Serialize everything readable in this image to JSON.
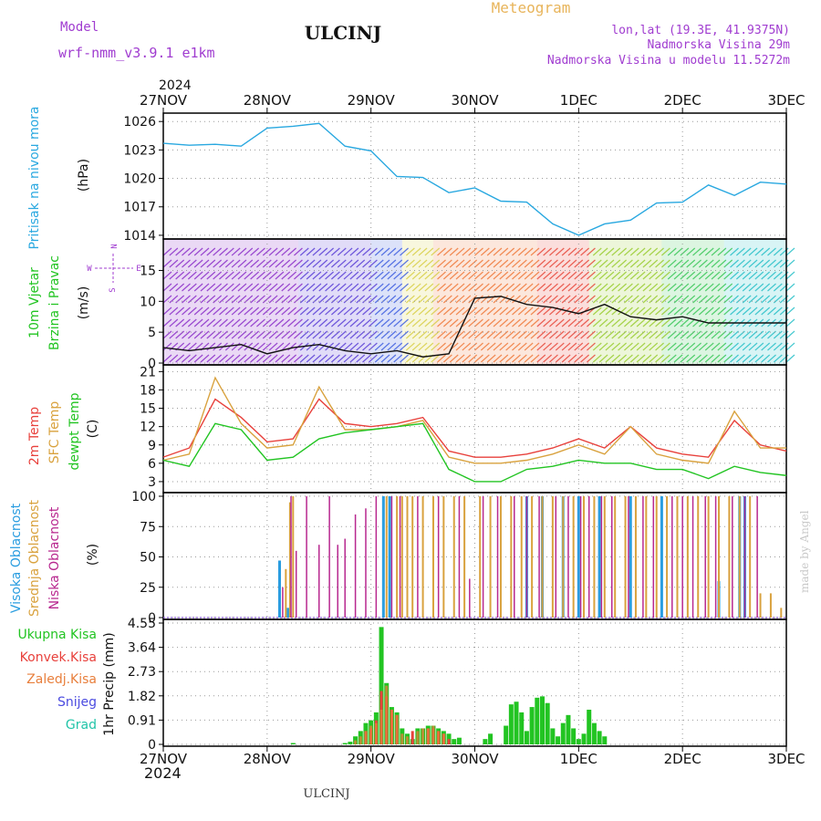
{
  "header": {
    "model_label": "Model",
    "model_name": "wrf-nmm_v3.9.1 e1km",
    "station": "ULCINJ",
    "app_title": "Meteogram",
    "lonlat": "lon,lat (19.3E, 41.9375N)",
    "elevation": "Nadmorska Visina 29m",
    "model_elevation": "Nadmorska Visina u modelu 11.5272m",
    "watermark": "made by Angel",
    "footer_station": "ULCINJ"
  },
  "colors": {
    "pressure": "#29a8e0",
    "t2m": "#e8413c",
    "tsfc": "#d9a23e",
    "dewpoint": "#22c422",
    "cloud_high": "#2a9de0",
    "cloud_mid": "#d9a23e",
    "cloud_low": "#b8288f",
    "precip_total": "#22c422",
    "precip_conv": "#e8413c",
    "precip_strat": "#e87f3c",
    "snow": "#4b4be0",
    "graupel": "#22c4a8",
    "wind_label": "#22c422",
    "purple_text": "#a03cd0"
  },
  "time_axis": {
    "year": "2024",
    "labels": [
      "27NOV",
      "28NOV",
      "29NOV",
      "30NOV",
      "1DEC",
      "2DEC",
      "3DEC"
    ]
  },
  "chart_data": [
    {
      "type": "line",
      "title": "Pritisak na nivou mora",
      "ylabel": "(hPa)",
      "ylim": [
        1013.8,
        1026.5
      ],
      "yticks": [
        "1026",
        "1023",
        "1020",
        "1017",
        "1014"
      ],
      "grid": true,
      "x": [
        0,
        0.25,
        0.5,
        0.75,
        1.0,
        1.25,
        1.5,
        1.75,
        2.0,
        2.25,
        2.5,
        2.75,
        3.0,
        3.25,
        3.5,
        3.75,
        4.0,
        4.25,
        4.5,
        4.75,
        5.0,
        5.25,
        5.5,
        5.75,
        6.0
      ],
      "series": [
        {
          "name": "Pritisak na nivou mora",
          "values": [
            1023.7,
            1023.5,
            1023.6,
            1023.4,
            1025.3,
            1025.5,
            1025.8,
            1023.4,
            1022.9,
            1020.2,
            1020.1,
            1018.5,
            1019.0,
            1017.6,
            1017.5,
            1015.2,
            1014.0,
            1015.2,
            1015.6,
            1017.4,
            1017.5,
            1019.3,
            1018.2,
            1019.6,
            1019.4
          ]
        }
      ]
    },
    {
      "type": "line",
      "title": "10m Vjetar Brzina i Pravac",
      "ylabel": "(m/s)",
      "ylim": [
        0,
        19.5
      ],
      "yticks": [
        "15",
        "10",
        "5",
        "0"
      ],
      "compass": [
        "N",
        "E",
        "S",
        "W"
      ],
      "x": [
        0,
        0.25,
        0.5,
        0.75,
        1.0,
        1.25,
        1.5,
        1.75,
        2.0,
        2.25,
        2.5,
        2.75,
        3.0,
        3.25,
        3.5,
        3.75,
        4.0,
        4.25,
        4.5,
        4.75,
        5.0,
        5.25,
        5.5,
        5.75,
        6.0
      ],
      "series": [
        {
          "name": "10m Vjetar Brzina i Pravac",
          "values": [
            2.5,
            2.0,
            2.5,
            3.0,
            1.5,
            2.5,
            3.0,
            2.0,
            1.5,
            2.0,
            1.0,
            1.5,
            10.5,
            10.8,
            9.5,
            9.0,
            8.0,
            9.5,
            7.5,
            7.0,
            7.5,
            6.5,
            6.5,
            6.5,
            6.5
          ]
        }
      ]
    },
    {
      "type": "line",
      "ylabel": "(C)",
      "ylim": [
        1.5,
        21.5
      ],
      "yticks": [
        "21",
        "18",
        "15",
        "12",
        "9",
        "6",
        "3"
      ],
      "grid": true,
      "x": [
        0,
        0.25,
        0.5,
        0.75,
        1.0,
        1.25,
        1.5,
        1.75,
        2.0,
        2.25,
        2.5,
        2.75,
        3.0,
        3.25,
        3.5,
        3.75,
        4.0,
        4.25,
        4.5,
        4.75,
        5.0,
        5.25,
        5.5,
        5.75,
        6.0
      ],
      "series": [
        {
          "name": "2m Temp",
          "values": [
            7.0,
            8.5,
            16.5,
            13.5,
            9.5,
            10.0,
            16.5,
            12.5,
            12.0,
            12.5,
            13.5,
            8.0,
            7.0,
            7.0,
            7.5,
            8.5,
            10.0,
            8.5,
            12.0,
            8.5,
            7.5,
            7.0,
            13.0,
            9.0,
            8.0
          ]
        },
        {
          "name": "SFC Temp",
          "values": [
            6.5,
            7.5,
            20.0,
            12.5,
            8.5,
            9.0,
            18.5,
            11.5,
            11.5,
            12.0,
            13.0,
            7.0,
            6.0,
            6.0,
            6.5,
            7.5,
            9.0,
            7.5,
            12.0,
            7.5,
            6.5,
            6.0,
            14.5,
            8.5,
            8.5
          ]
        },
        {
          "name": "dewpt Temp",
          "values": [
            6.5,
            5.5,
            12.5,
            11.5,
            6.5,
            7.0,
            10.0,
            11.0,
            11.5,
            12.0,
            12.5,
            5.0,
            3.0,
            3.0,
            5.0,
            5.5,
            6.5,
            6.0,
            6.0,
            5.0,
            5.0,
            3.5,
            5.5,
            4.5,
            4.0
          ]
        }
      ]
    },
    {
      "type": "bar",
      "ylabel": "(%)",
      "ylim": [
        0,
        100
      ],
      "yticks": [
        "100",
        "75",
        "50",
        "25",
        "0"
      ],
      "grid": true,
      "series": [
        {
          "name": "Visoka Oblacnost",
          "x": [
            1.12,
            1.2,
            2.12,
            2.18,
            3.5,
            3.65,
            3.85,
            4.0,
            4.2,
            4.5,
            4.8,
            5.35,
            5.55,
            5.6
          ],
          "values": [
            47,
            8,
            100,
            100,
            100,
            100,
            100,
            100,
            100,
            100,
            100,
            30,
            100,
            100
          ]
        },
        {
          "name": "Srednja Oblacnost",
          "x": [
            1.18,
            1.22,
            1.25,
            2.15,
            2.25,
            2.3,
            2.35,
            2.4,
            2.5,
            2.6,
            2.7,
            2.8,
            2.9,
            3.05,
            3.15,
            3.25,
            3.35,
            3.45,
            3.55,
            3.65,
            3.75,
            3.85,
            3.95,
            4.05,
            4.15,
            4.25,
            4.35,
            4.45,
            4.55,
            4.65,
            4.75,
            4.85,
            4.95,
            5.05,
            5.15,
            5.25,
            5.35,
            5.45,
            5.55,
            5.65,
            5.75,
            5.85,
            5.95
          ],
          "values": [
            40,
            95,
            100,
            100,
            100,
            100,
            100,
            100,
            100,
            100,
            100,
            100,
            100,
            100,
            100,
            100,
            100,
            100,
            100,
            100,
            100,
            100,
            100,
            100,
            100,
            100,
            100,
            100,
            100,
            100,
            100,
            100,
            100,
            100,
            100,
            100,
            100,
            100,
            100,
            100,
            20,
            20,
            8
          ]
        },
        {
          "name": "Niska Oblacnost",
          "x": [
            1.15,
            1.23,
            1.28,
            1.38,
            1.5,
            1.6,
            1.68,
            1.75,
            1.85,
            1.95,
            2.05,
            2.2,
            2.28,
            2.45,
            2.65,
            2.85,
            2.95,
            3.08,
            3.22,
            3.38,
            3.5,
            3.62,
            3.78,
            3.9,
            4.02,
            4.1,
            4.22,
            4.32,
            4.48,
            4.62,
            4.72,
            4.9,
            5.0,
            5.1,
            5.22,
            5.32,
            5.48,
            5.6,
            5.72
          ],
          "values": [
            25,
            100,
            55,
            100,
            60,
            100,
            60,
            65,
            85,
            90,
            100,
            100,
            100,
            100,
            100,
            100,
            32,
            100,
            100,
            100,
            100,
            100,
            100,
            100,
            100,
            100,
            100,
            100,
            100,
            100,
            100,
            100,
            100,
            100,
            100,
            100,
            100,
            100,
            100
          ]
        }
      ]
    },
    {
      "type": "bar",
      "ylabel": "1hr Precip (mm)",
      "ylim": [
        0,
        4.55
      ],
      "yticks": [
        "4.55",
        "3.64",
        "2.73",
        "1.82",
        "0.91",
        "0"
      ],
      "grid": true,
      "series": [
        {
          "name": "Ukupna Kisa",
          "x": [
            1.25,
            1.75,
            1.8,
            1.85,
            1.9,
            1.95,
            2.0,
            2.05,
            2.1,
            2.15,
            2.2,
            2.25,
            2.3,
            2.35,
            2.4,
            2.45,
            2.5,
            2.55,
            2.6,
            2.65,
            2.7,
            2.75,
            2.8,
            2.85,
            3.1,
            3.15,
            3.3,
            3.35,
            3.4,
            3.45,
            3.5,
            3.55,
            3.6,
            3.65,
            3.7,
            3.75,
            3.8,
            3.85,
            3.9,
            3.95,
            4.0,
            4.05,
            4.1,
            4.15,
            4.2,
            4.25
          ],
          "values": [
            0.05,
            0.05,
            0.1,
            0.3,
            0.5,
            0.8,
            0.9,
            1.2,
            4.4,
            2.3,
            1.4,
            1.2,
            0.6,
            0.4,
            0.2,
            0.6,
            0.6,
            0.7,
            0.7,
            0.6,
            0.5,
            0.4,
            0.2,
            0.25,
            0.2,
            0.4,
            0.7,
            1.5,
            1.6,
            1.2,
            0.5,
            1.4,
            1.75,
            1.8,
            1.55,
            0.6,
            0.3,
            0.8,
            1.1,
            0.6,
            0.2,
            0.4,
            1.3,
            0.8,
            0.5,
            0.3
          ]
        },
        {
          "name": "Konvek.Kisa",
          "x": [
            1.95,
            2.0,
            2.05,
            2.1,
            2.15,
            2.2,
            2.25,
            2.4,
            2.55,
            2.6,
            2.65,
            2.7,
            2.75
          ],
          "values": [
            0.5,
            0.6,
            0.9,
            2.0,
            1.8,
            1.3,
            1.1,
            0.5,
            0.6,
            0.6,
            0.5,
            0.4,
            0.2
          ]
        },
        {
          "name": "Zaledj.Kisa",
          "x": [
            1.85,
            1.9,
            1.95,
            2.0,
            2.05,
            2.1,
            2.15,
            2.2,
            2.25,
            2.3,
            2.35,
            2.45,
            2.5,
            2.55,
            2.6,
            2.65,
            2.7
          ],
          "values": [
            0.15,
            0.3,
            0.5,
            0.7,
            0.8,
            1.3,
            2.2,
            1.3,
            1.1,
            0.4,
            0.3,
            0.5,
            0.6,
            0.6,
            0.7,
            0.5,
            0.4
          ]
        },
        {
          "name": "Snijeg",
          "x": [],
          "values": []
        },
        {
          "name": "Grad",
          "x": [],
          "values": []
        }
      ]
    }
  ],
  "legends": {
    "pressure": [
      "Pritisak na nivou mora"
    ],
    "wind": [
      "10m Vjetar",
      "Brzina i Pravac"
    ],
    "temp": [
      "2m Temp",
      "SFC Temp",
      "dewpt Temp"
    ],
    "cloud": [
      "Visoka Oblacnost",
      "Srednja Oblacnost",
      "Niska Oblacnost"
    ],
    "precip": [
      "Ukupna Kisa",
      "Konvek.Kisa",
      "Zaledj.Kisa",
      "Snijeg",
      "Grad"
    ]
  }
}
